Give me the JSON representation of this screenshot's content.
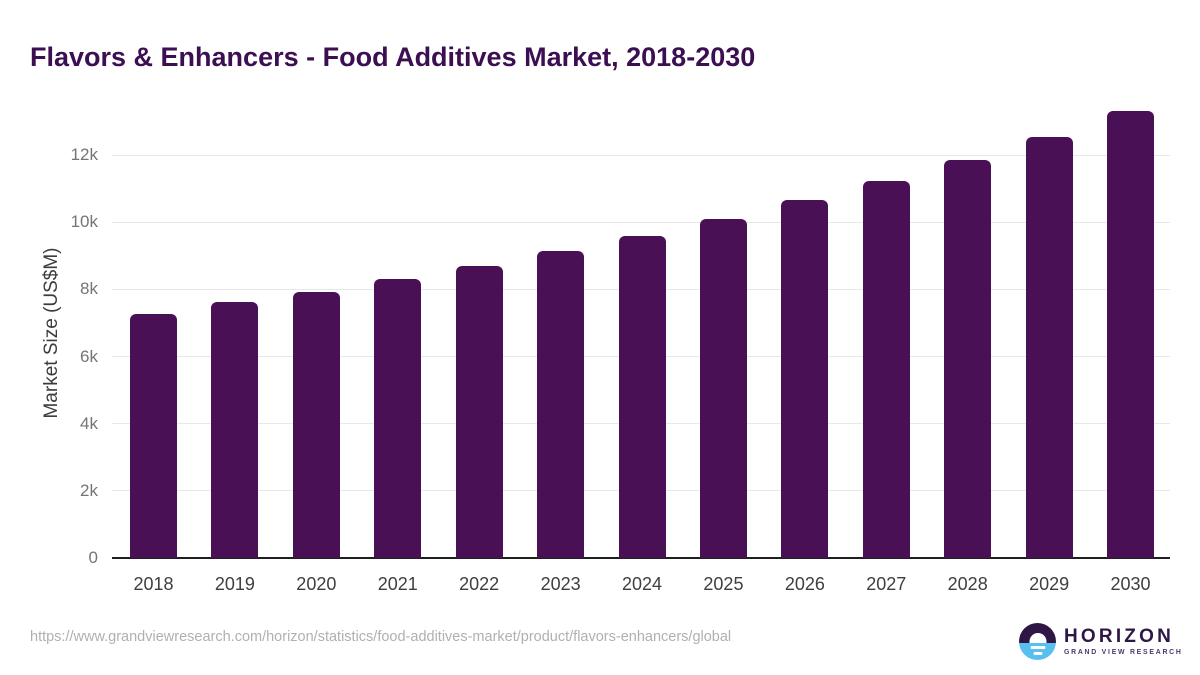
{
  "page": {
    "title": "Flavors & Enhancers - Food Additives Market, 2018-2030"
  },
  "chart_data": {
    "type": "bar",
    "title": "Flavors & Enhancers - Food Additives Market, 2018-2030",
    "categories": [
      "2018",
      "2019",
      "2020",
      "2021",
      "2022",
      "2023",
      "2024",
      "2025",
      "2026",
      "2027",
      "2028",
      "2029",
      "2030"
    ],
    "values": [
      7280,
      7620,
      7930,
      8300,
      8690,
      9130,
      9600,
      10100,
      10650,
      11240,
      11850,
      12530,
      13300
    ],
    "xlabel": "",
    "ylabel": "Market Size (US$M)",
    "ylim": [
      0,
      12000
    ],
    "yticks": [
      {
        "value": 0,
        "label": "0"
      },
      {
        "value": 2000,
        "label": "2k"
      },
      {
        "value": 4000,
        "label": "4k"
      },
      {
        "value": 6000,
        "label": "6k"
      },
      {
        "value": 8000,
        "label": "8k"
      },
      {
        "value": 10000,
        "label": "10k"
      },
      {
        "value": 12000,
        "label": "12k"
      }
    ],
    "grid": true,
    "legend": false,
    "bar_color": "#4a1056"
  },
  "footer": {
    "source_url": "https://www.grandviewresearch.com/horizon/statistics/food-additives-market/product/flavors-enhancers/global",
    "logo": {
      "name": "HORIZON",
      "subtitle": "GRAND VIEW RESEARCH"
    }
  },
  "colors": {
    "title": "#3c0e52",
    "bar": "#4a1056",
    "grid": "#e8e8e8",
    "axis": "#1f1f1f",
    "ytick": "#757575",
    "xtick": "#3f3f3f",
    "ylabel": "#3c3c3c",
    "url": "#b0b0b0",
    "logo-dark": "#2e1745",
    "logo-blue": "#58c0ee",
    "logo-subtitle": "#4f356e"
  }
}
